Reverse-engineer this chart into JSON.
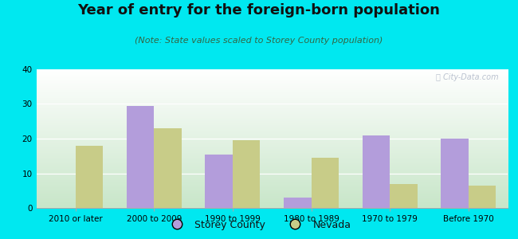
{
  "title": "Year of entry for the foreign-born population",
  "subtitle": "(Note: State values scaled to Storey County population)",
  "categories": [
    "2010 or later",
    "2000 to 2009",
    "1990 to 1999",
    "1980 to 1989",
    "1970 to 1979",
    "Before 1970"
  ],
  "storey_county": [
    0,
    29.5,
    15.5,
    3.0,
    21.0,
    20.0
  ],
  "nevada": [
    18.0,
    23.0,
    19.5,
    14.5,
    7.0,
    6.5
  ],
  "storey_color": "#b39ddb",
  "nevada_color": "#c8cc88",
  "background_outer": "#00e8f0",
  "gradient_bottom": "#c8e6c9",
  "gradient_top": "#ffffff",
  "ylim": [
    0,
    40
  ],
  "yticks": [
    0,
    10,
    20,
    30,
    40
  ],
  "bar_width": 0.35,
  "legend_labels": [
    "Storey County",
    "Nevada"
  ],
  "title_fontsize": 13,
  "subtitle_fontsize": 8,
  "tick_fontsize": 7.5,
  "legend_fontsize": 9
}
